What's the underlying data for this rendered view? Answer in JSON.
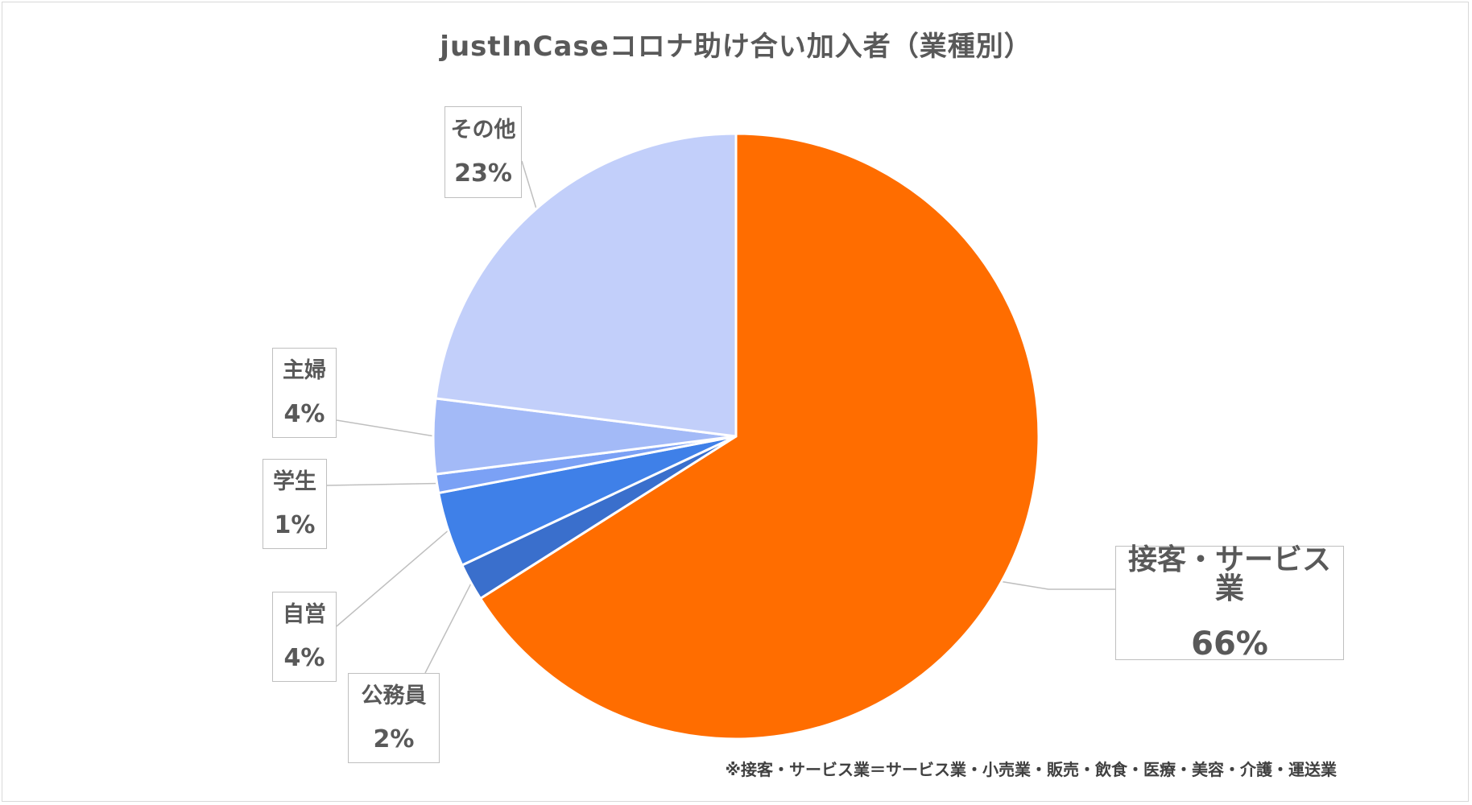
{
  "chart_data": {
    "type": "pie",
    "title": "justInCaseコロナ助け合い加入者（業種別）",
    "slices": [
      {
        "label": "接客・サービス業",
        "value": 66,
        "value_label": "66%",
        "color": "#ff6d00"
      },
      {
        "label": "公務員",
        "value": 2,
        "value_label": "2%",
        "color": "#3a6fcc"
      },
      {
        "label": "自営",
        "value": 4,
        "value_label": "4%",
        "color": "#3f80e8"
      },
      {
        "label": "学生",
        "value": 1,
        "value_label": "1%",
        "color": "#7ba1f5"
      },
      {
        "label": "主婦",
        "value": 4,
        "value_label": "4%",
        "color": "#a3baf7"
      },
      {
        "label": "その他",
        "value": 23,
        "value_label": "23%",
        "color": "#c2cffa"
      }
    ],
    "start_angle": "12 o'clock",
    "direction": "clockwise",
    "legend": "none",
    "data_labels": "callout boxes with leader lines",
    "footnote": "※接客・サービス業＝サービス業・小売業・販売・飲食・医療・美容・介護・運送業"
  }
}
